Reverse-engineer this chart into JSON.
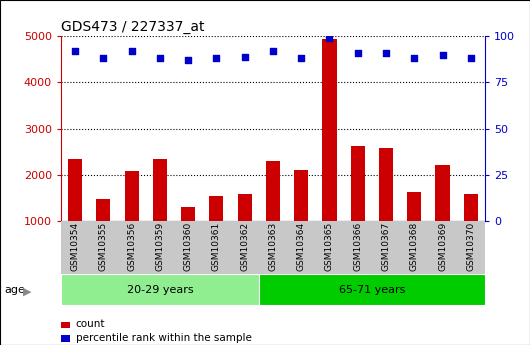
{
  "title": "GDS473 / 227337_at",
  "categories": [
    "GSM10354",
    "GSM10355",
    "GSM10356",
    "GSM10359",
    "GSM10360",
    "GSM10361",
    "GSM10362",
    "GSM10363",
    "GSM10364",
    "GSM10365",
    "GSM10366",
    "GSM10367",
    "GSM10368",
    "GSM10369",
    "GSM10370"
  ],
  "counts": [
    2350,
    1480,
    2080,
    2350,
    1300,
    1530,
    1570,
    2300,
    2100,
    4950,
    2620,
    2570,
    1630,
    2220,
    1570
  ],
  "percentile_ranks": [
    92,
    88,
    92,
    88,
    87,
    88,
    89,
    92,
    88,
    99,
    91,
    91,
    88,
    90,
    88
  ],
  "bar_color": "#cc0000",
  "dot_color": "#0000cc",
  "group1_label": "20-29 years",
  "group2_label": "65-71 years",
  "group1_count": 7,
  "group2_count": 8,
  "group1_color": "#90ee90",
  "group2_color": "#00cc00",
  "age_label": "age",
  "ylim_left": [
    1000,
    5000
  ],
  "ylim_right": [
    0,
    100
  ],
  "yticks_left": [
    1000,
    2000,
    3000,
    4000,
    5000
  ],
  "yticks_right": [
    0,
    25,
    50,
    75,
    100
  ],
  "left_tick_color": "#cc0000",
  "right_tick_color": "#0000cc",
  "legend_count_label": "count",
  "legend_pct_label": "percentile rank within the sample",
  "xticklabel_bg": "#c8c8c8"
}
